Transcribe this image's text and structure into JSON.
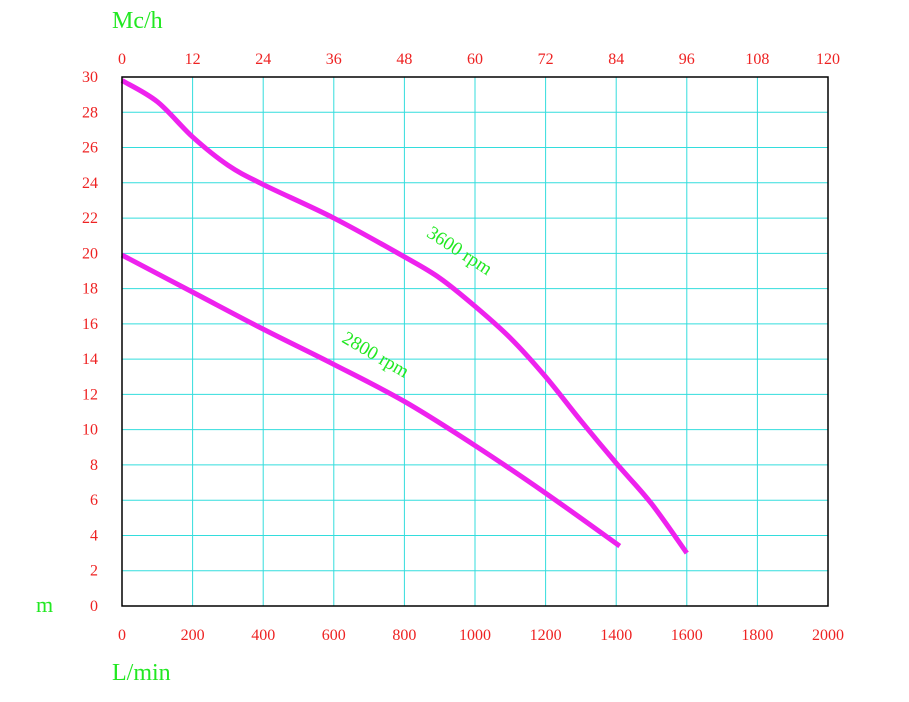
{
  "chart_data": {
    "type": "line",
    "x_bottom": {
      "label": "L/min",
      "range": [
        0,
        2000
      ],
      "ticks": [
        "0",
        "200",
        "400",
        "600",
        "800",
        "1000",
        "1200",
        "1400",
        "1600",
        "1800",
        "2000"
      ]
    },
    "x_top": {
      "label": "Mc/h",
      "range": [
        0,
        120
      ],
      "ticks": [
        "0",
        "12",
        "24",
        "36",
        "48",
        "60",
        "72",
        "84",
        "96",
        "108",
        "120"
      ]
    },
    "y": {
      "label": "m",
      "range": [
        0,
        30
      ],
      "ticks": [
        "0",
        "2",
        "4",
        "6",
        "8",
        "10",
        "12",
        "14",
        "16",
        "18",
        "20",
        "22",
        "24",
        "26",
        "28",
        "30"
      ]
    },
    "grid": true,
    "series": [
      {
        "name": "3600 rpm",
        "x": [
          0,
          100,
          200,
          300,
          400,
          600,
          800,
          900,
          1000,
          1100,
          1200,
          1300,
          1400,
          1500,
          1600
        ],
        "y": [
          29.8,
          28.6,
          26.6,
          25.0,
          23.9,
          22.0,
          19.8,
          18.6,
          17.0,
          15.2,
          13.0,
          10.5,
          8.1,
          5.8,
          3.0
        ]
      },
      {
        "name": "2800 rpm",
        "x": [
          0,
          200,
          400,
          600,
          800,
          1000,
          1200,
          1410
        ],
        "y": [
          19.9,
          17.8,
          15.7,
          13.7,
          11.6,
          9.1,
          6.4,
          3.4
        ]
      }
    ],
    "colors": {
      "line": "#ee22ee",
      "grid": "#33dddd",
      "axis_labels": "#22e822",
      "tick_labels": "#ee2222",
      "frame": "#000000"
    }
  }
}
